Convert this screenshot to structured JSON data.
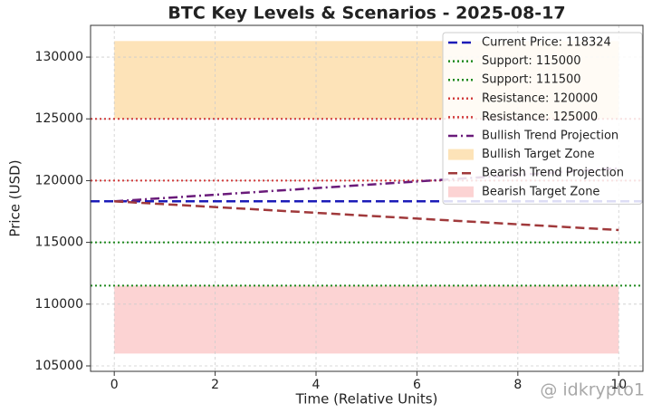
{
  "chart_data": {
    "type": "line",
    "title": "BTC Key Levels & Scenarios - 2025-08-17",
    "xlabel": "Time (Relative Units)",
    "ylabel": "Price (USD)",
    "xlim": [
      -0.47,
      10.48
    ],
    "ylim": [
      104560,
      132570
    ],
    "xticks": [
      0,
      2,
      4,
      6,
      8,
      10
    ],
    "yticks": [
      105000,
      110000,
      115000,
      120000,
      125000,
      130000
    ],
    "grid": true,
    "legend": "upper right",
    "watermark": "@ idkrypto1",
    "series": [
      {
        "name": "Current Price: 118324",
        "kind": "hline",
        "style": "dashed",
        "color": "#1c1cb8",
        "value": 118324
      },
      {
        "name": "Support: 115000",
        "kind": "hline",
        "style": "dotted",
        "color": "#1f8a1f",
        "value": 115000
      },
      {
        "name": "Support: 111500",
        "kind": "hline",
        "style": "dotted",
        "color": "#1f8a1f",
        "value": 111500
      },
      {
        "name": "Resistance: 120000",
        "kind": "hline",
        "style": "dotted",
        "color": "#d23c3c",
        "value": 120000
      },
      {
        "name": "Resistance: 125000",
        "kind": "hline",
        "style": "dotted",
        "color": "#d23c3c",
        "value": 125000
      },
      {
        "name": "Bullish Trend Projection",
        "kind": "line",
        "style": "dashdot",
        "color": "#6a1b7a",
        "x": [
          0,
          10
        ],
        "values": [
          118324,
          121000
        ]
      },
      {
        "name": "Bullish Target Zone",
        "kind": "zone",
        "color": "#fde3b8",
        "x": [
          0,
          10
        ],
        "range": [
          125000,
          131300
        ]
      },
      {
        "name": "Bearish Trend Projection",
        "kind": "line",
        "style": "dashed",
        "color": "#a0393b",
        "x": [
          0,
          10
        ],
        "values": [
          118324,
          116000
        ]
      },
      {
        "name": "Bearish Target Zone",
        "kind": "zone",
        "color": "#fcd3d3",
        "x": [
          0,
          10
        ],
        "range": [
          106000,
          111500
        ]
      }
    ]
  }
}
